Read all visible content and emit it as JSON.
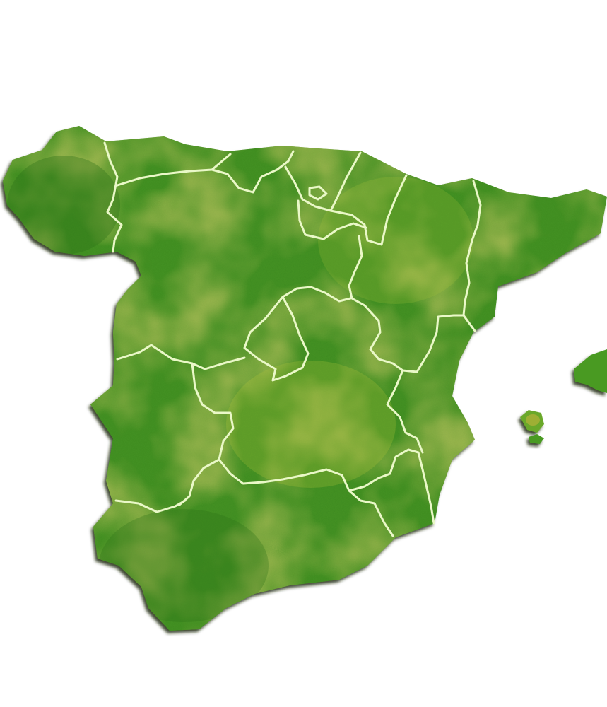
{
  "map": {
    "colors": {
      "background": "#ffffff",
      "land_dark": "#2f7d1c",
      "land_mid": "#4a9a24",
      "land_light": "#7fb52a",
      "land_yellow": "#c8b23a",
      "border_line": "#e9f7c8",
      "shadow": "#1c2a10"
    },
    "regions": [
      "galicia",
      "asturias",
      "cantabria",
      "pais-vasco",
      "navarra",
      "la-rioja",
      "aragon",
      "cataluna",
      "castilla-y-leon",
      "madrid",
      "castilla-la-mancha",
      "extremadura",
      "comunidad-valenciana",
      "murcia",
      "andalucia",
      "islas-baleares"
    ]
  }
}
